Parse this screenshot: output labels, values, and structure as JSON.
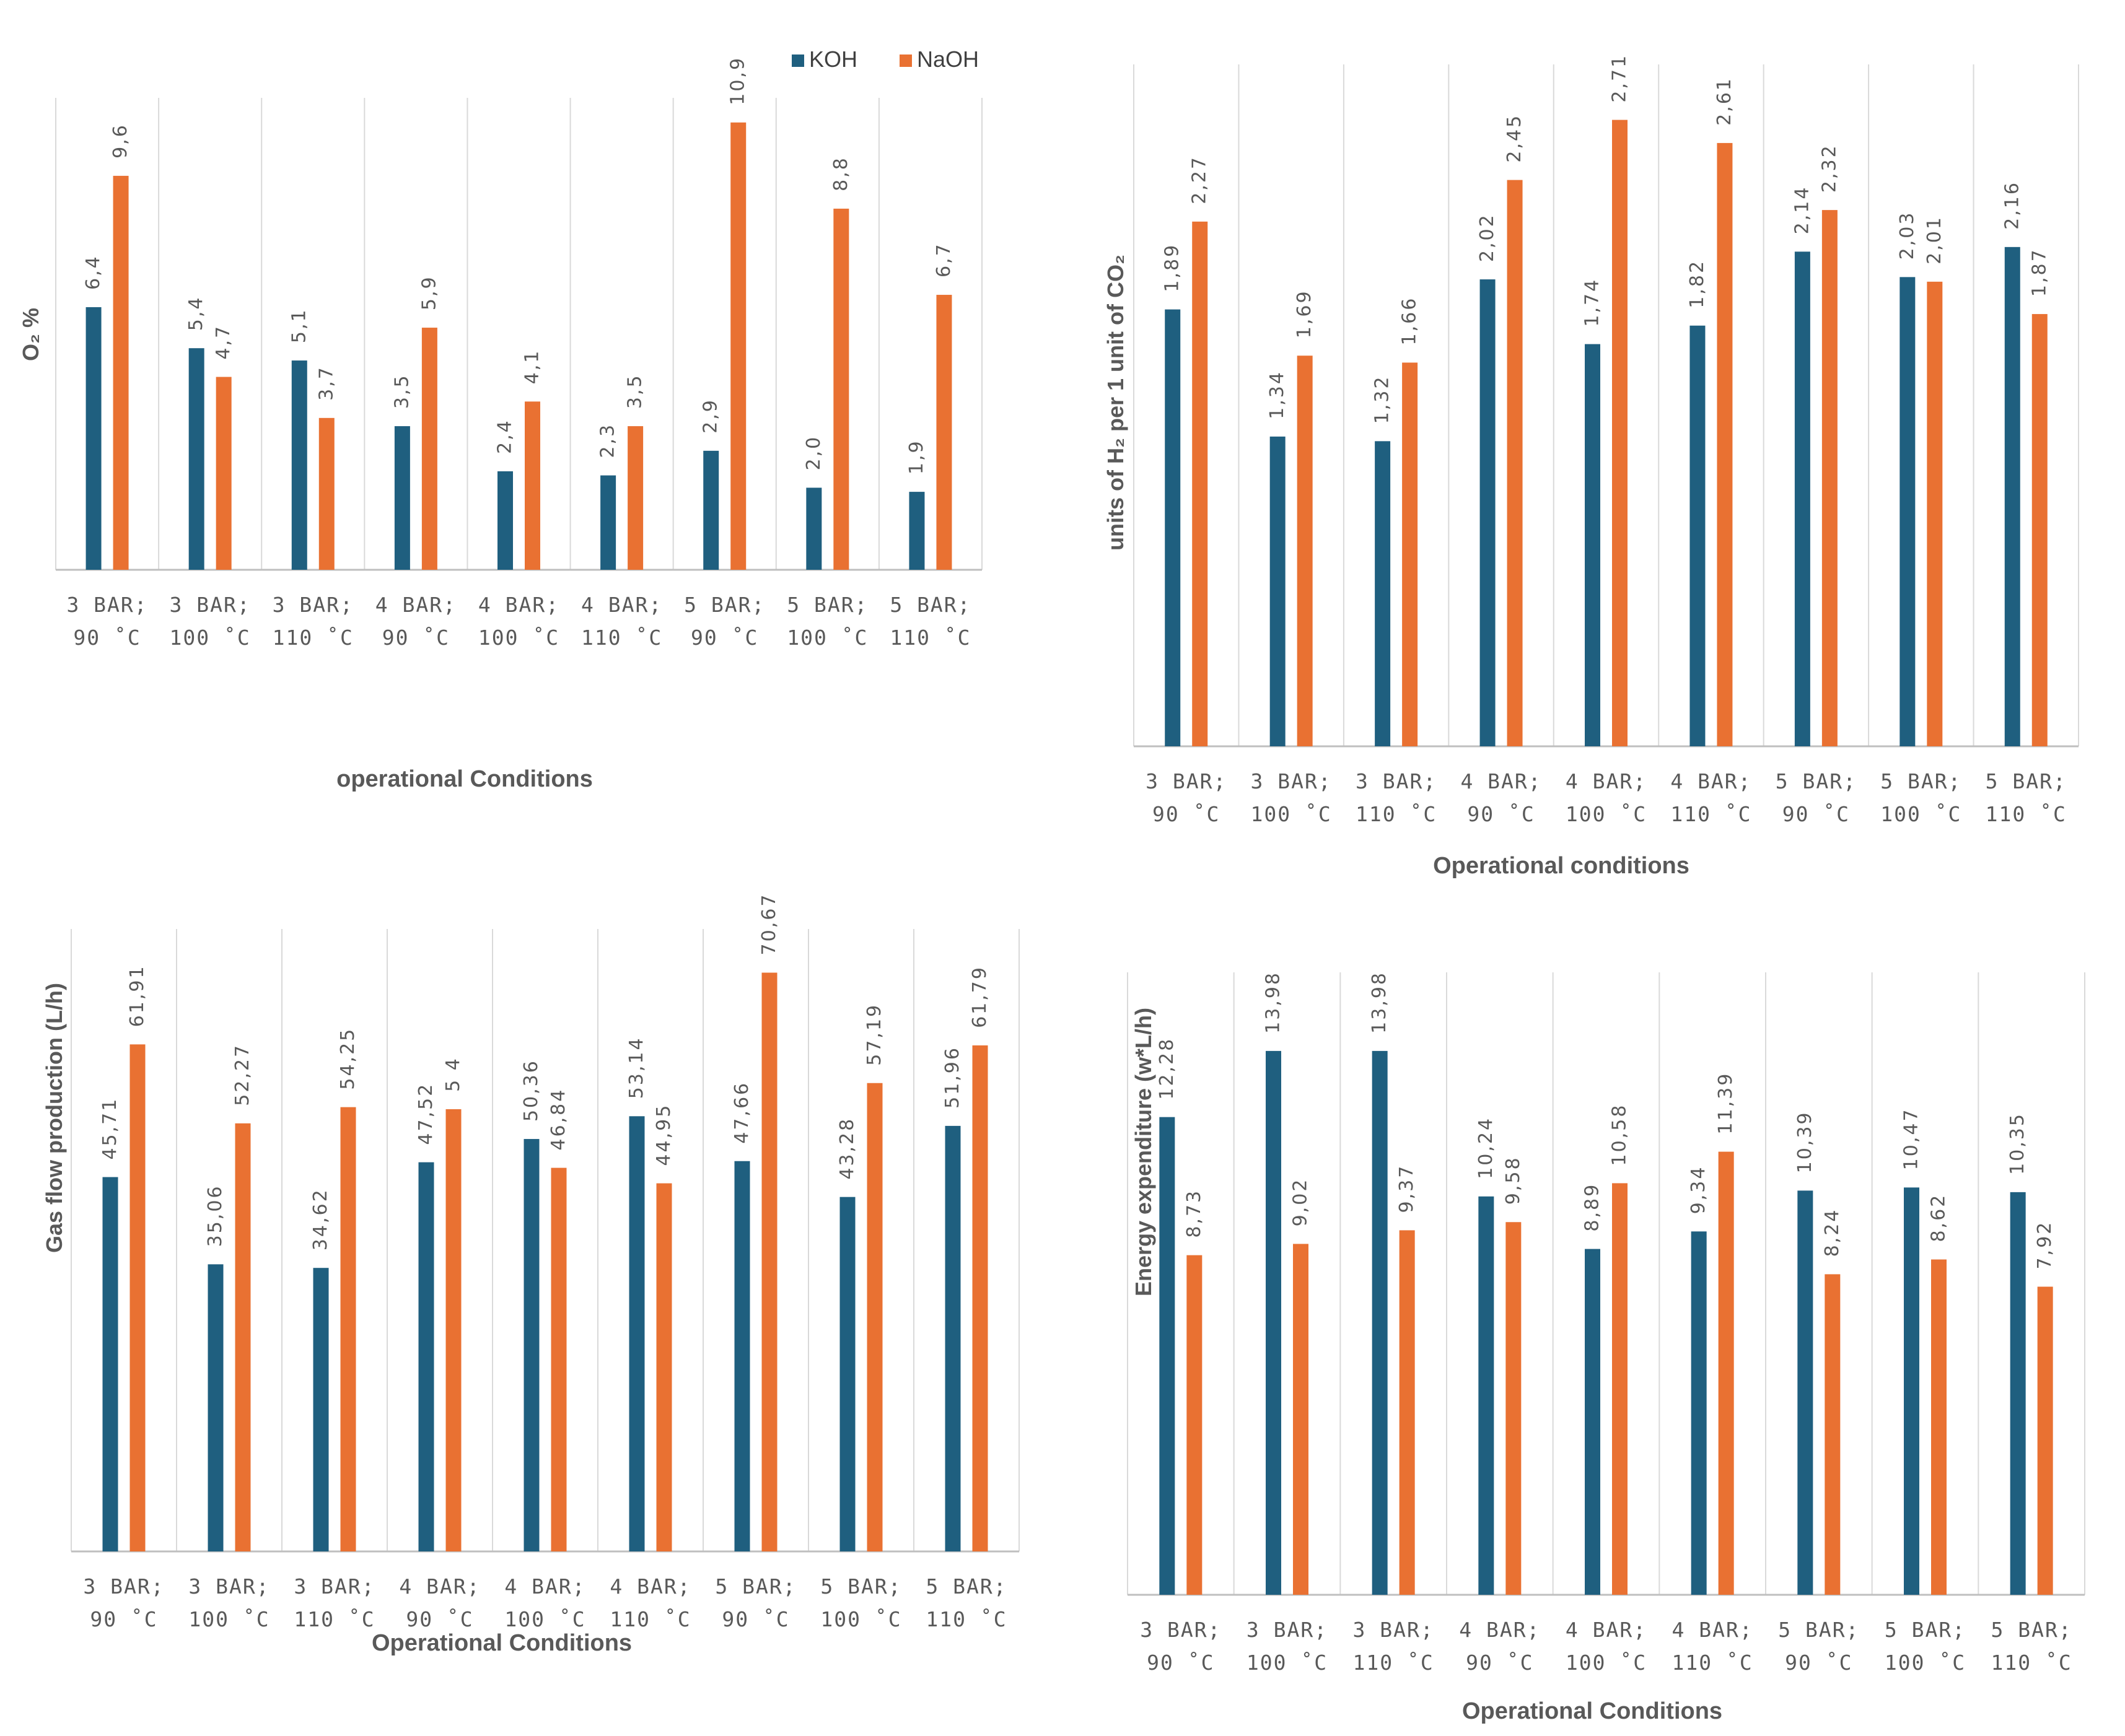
{
  "colors": {
    "KOH": "#1f5f7f",
    "NaOH": "#e97132",
    "grid": "#d9d9d9",
    "axis": "#bfbfbf",
    "text": "#595959"
  },
  "legend": {
    "items": [
      {
        "label": "KOH",
        "color": "#1f5f7f"
      },
      {
        "label": "NaOH",
        "color": "#e97132"
      }
    ]
  },
  "chart_data": [
    {
      "id": "o2",
      "type": "bar",
      "title": "",
      "ylabel": "O₂ %",
      "xlabel": "operational Conditions",
      "ylim": [
        0,
        11.5
      ],
      "categories": [
        [
          "3 BAR;",
          "90 ˚C"
        ],
        [
          "3 BAR;",
          "100 ˚C"
        ],
        [
          "3 BAR;",
          "110 ˚C"
        ],
        [
          "4 BAR;",
          "90 ˚C"
        ],
        [
          "4 BAR;",
          "100 ˚C"
        ],
        [
          "4 BAR;",
          "110 ˚C"
        ],
        [
          "5 BAR;",
          "90 ˚C"
        ],
        [
          "5 BAR;",
          "100 ˚C"
        ],
        [
          "5 BAR;",
          "110 ˚C"
        ]
      ],
      "series": [
        {
          "name": "KOH",
          "values": [
            6.4,
            5.4,
            5.1,
            3.5,
            2.4,
            2.3,
            2.9,
            2.0,
            1.9
          ],
          "labels": [
            "6,4",
            "5,4",
            "5,1",
            "3,5",
            "2,4",
            "2,3",
            "2,9",
            "2,0",
            "1,9"
          ]
        },
        {
          "name": "NaOH",
          "values": [
            9.6,
            4.7,
            3.7,
            5.9,
            4.1,
            3.5,
            10.9,
            8.8,
            6.7
          ],
          "labels": [
            "9,6",
            "4,7",
            "3,7",
            "5,9",
            "4,1",
            "3,5",
            "10,9",
            "8,8",
            "6,7"
          ]
        }
      ]
    },
    {
      "id": "h2",
      "type": "bar",
      "title": "",
      "ylabel": "units of H₂ per 1 unit of CO₂",
      "xlabel": "Operational conditions",
      "ylim": [
        0,
        2.95
      ],
      "categories": [
        [
          "3 BAR;",
          "90 ˚C"
        ],
        [
          "3 BAR;",
          "100 ˚C"
        ],
        [
          "3 BAR;",
          "110 ˚C"
        ],
        [
          "4 BAR;",
          "90 ˚C"
        ],
        [
          "4 BAR;",
          "100 ˚C"
        ],
        [
          "4 BAR;",
          "110 ˚C"
        ],
        [
          "5 BAR;",
          "90 ˚C"
        ],
        [
          "5 BAR;",
          "100 ˚C"
        ],
        [
          "5 BAR;",
          "110 ˚C"
        ]
      ],
      "series": [
        {
          "name": "KOH",
          "values": [
            1.89,
            1.34,
            1.32,
            2.02,
            1.74,
            1.82,
            2.14,
            2.03,
            2.16
          ],
          "labels": [
            "1,89",
            "1,34",
            "1,32",
            "2,02",
            "1,74",
            "1,82",
            "2,14",
            "2,03",
            "2,16"
          ]
        },
        {
          "name": "NaOH",
          "values": [
            2.27,
            1.69,
            1.66,
            2.45,
            2.71,
            2.61,
            2.32,
            2.01,
            1.87
          ],
          "labels": [
            "2,27",
            "1,69",
            "1,66",
            "2,45",
            "2,71",
            "2,61",
            "2,32",
            "2,01",
            "1,87"
          ]
        }
      ]
    },
    {
      "id": "gas",
      "type": "bar",
      "title": "",
      "ylabel": "Gas flow production (L/h)",
      "xlabel": "Operational Conditions",
      "ylim": [
        0,
        76
      ],
      "categories": [
        [
          "3 BAR;",
          "90 ˚C"
        ],
        [
          "3 BAR;",
          "100 ˚C"
        ],
        [
          "3 BAR;",
          "110 ˚C"
        ],
        [
          "4 BAR;",
          "90 ˚C"
        ],
        [
          "4 BAR;",
          "100 ˚C"
        ],
        [
          "4 BAR;",
          "110 ˚C"
        ],
        [
          "5 BAR;",
          "90 ˚C"
        ],
        [
          "5 BAR;",
          "100 ˚C"
        ],
        [
          "5 BAR;",
          "110 ˚C"
        ]
      ],
      "series": [
        {
          "name": "KOH",
          "values": [
            45.71,
            35.06,
            34.62,
            47.52,
            50.36,
            53.14,
            47.66,
            43.28,
            51.96
          ],
          "labels": [
            "45,71",
            "35,06",
            "34,62",
            "47,52",
            "50,36",
            "53,14",
            "47,66",
            "43,28",
            "51,96"
          ]
        },
        {
          "name": "NaOH",
          "values": [
            61.91,
            52.27,
            54.25,
            54.0,
            46.84,
            44.95,
            70.67,
            57.19,
            61.79
          ],
          "labels": [
            "61,91",
            "52,27",
            "54,25",
            "5\n4",
            "46,84",
            "44,95",
            "70,67",
            "57,19",
            "61,79"
          ]
        }
      ]
    },
    {
      "id": "energy",
      "type": "bar",
      "title": "",
      "ylabel": "Energy expenditure (w*L/h)",
      "xlabel": "Operational Conditions",
      "ylim": [
        0,
        16.0
      ],
      "categories": [
        [
          "3 BAR;",
          "90 ˚C"
        ],
        [
          "3 BAR;",
          "100 ˚C"
        ],
        [
          "3 BAR;",
          "110 ˚C"
        ],
        [
          "4 BAR;",
          "90 ˚C"
        ],
        [
          "4 BAR;",
          "100 ˚C"
        ],
        [
          "4 BAR;",
          "110 ˚C"
        ],
        [
          "5 BAR;",
          "90 ˚C"
        ],
        [
          "5 BAR;",
          "100 ˚C"
        ],
        [
          "5 BAR;",
          "110 ˚C"
        ]
      ],
      "series": [
        {
          "name": "KOH",
          "values": [
            12.28,
            13.98,
            13.98,
            10.24,
            8.89,
            9.34,
            10.39,
            10.47,
            10.35
          ],
          "labels": [
            "12,28",
            "13,98",
            "13,98",
            "10,24",
            "8,89",
            "9,34",
            "10,39",
            "10,47",
            "10,35"
          ]
        },
        {
          "name": "NaOH",
          "values": [
            8.73,
            9.02,
            9.37,
            9.58,
            10.58,
            11.39,
            8.24,
            8.62,
            7.92
          ],
          "labels": [
            "8,73",
            "9,02",
            "9,37",
            "9,58",
            "10,58",
            "11,39",
            "8,24",
            "8,62",
            "7,92"
          ]
        }
      ]
    }
  ]
}
